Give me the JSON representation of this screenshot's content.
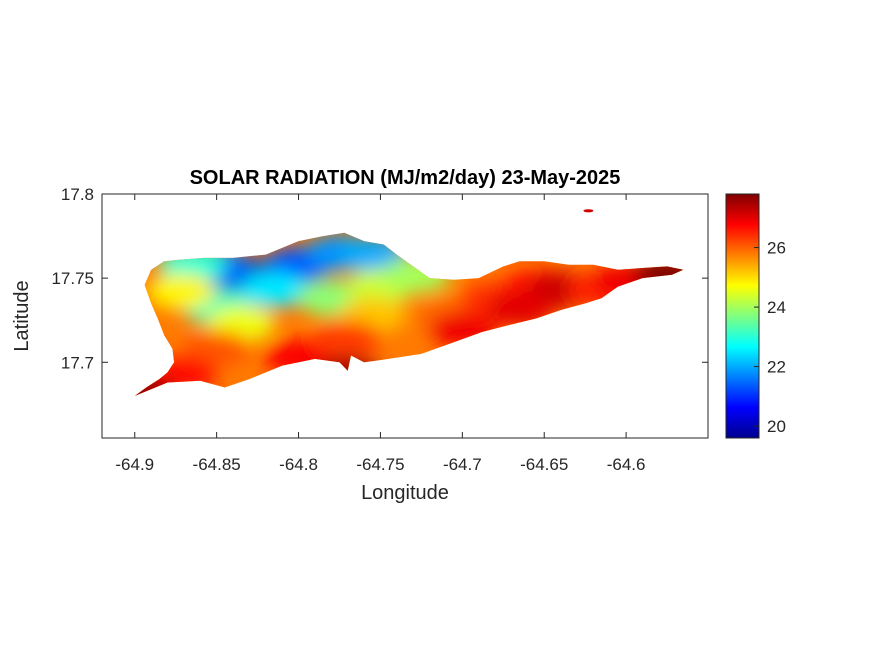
{
  "chart_data": {
    "type": "heatmap",
    "title": "SOLAR RADIATION (MJ/m2/day) 23-May-2025",
    "xlabel": "Longitude",
    "ylabel": "Latitude",
    "xlim": [
      -64.92,
      -64.55
    ],
    "ylim": [
      17.655,
      17.8
    ],
    "xticks": [
      -64.9,
      -64.85,
      -64.8,
      -64.75,
      -64.7,
      -64.65,
      -64.6
    ],
    "xtick_labels": [
      "-64.9",
      "-64.85",
      "-64.8",
      "-64.75",
      "-64.7",
      "-64.65",
      "-64.6"
    ],
    "yticks": [
      17.7,
      17.75,
      17.8
    ],
    "ytick_labels": [
      "17.7",
      "17.75",
      "17.8"
    ],
    "colormap": "jet",
    "colorbar": {
      "range": [
        19.6,
        27.8
      ],
      "ticks": [
        20,
        22,
        24,
        26
      ],
      "tick_labels": [
        "20",
        "22",
        "24",
        "26"
      ]
    },
    "grid": false,
    "regions": [
      {
        "lon": -64.835,
        "lat": 17.752,
        "value": 20.2
      },
      {
        "lon": -64.8,
        "lat": 17.758,
        "value": 21.3
      },
      {
        "lon": -64.85,
        "lat": 17.757,
        "value": 21.5
      },
      {
        "lon": -64.775,
        "lat": 17.765,
        "value": 21.8
      },
      {
        "lon": -64.755,
        "lat": 17.764,
        "value": 22.0
      },
      {
        "lon": -64.865,
        "lat": 17.758,
        "value": 23.0
      },
      {
        "lon": -64.815,
        "lat": 17.743,
        "value": 22.5
      },
      {
        "lon": -64.85,
        "lat": 17.733,
        "value": 23.2
      },
      {
        "lon": -64.78,
        "lat": 17.738,
        "value": 23.8
      },
      {
        "lon": -64.75,
        "lat": 17.745,
        "value": 24.3
      },
      {
        "lon": -64.835,
        "lat": 17.723,
        "value": 24.6
      },
      {
        "lon": -64.872,
        "lat": 17.742,
        "value": 24.8
      },
      {
        "lon": -64.728,
        "lat": 17.752,
        "value": 24.0
      },
      {
        "lon": -64.755,
        "lat": 17.728,
        "value": 25.2
      },
      {
        "lon": -64.71,
        "lat": 17.728,
        "value": 25.9
      },
      {
        "lon": -64.85,
        "lat": 17.708,
        "value": 26.1
      },
      {
        "lon": -64.8,
        "lat": 17.703,
        "value": 26.8
      },
      {
        "lon": -64.87,
        "lat": 17.693,
        "value": 26.7
      },
      {
        "lon": -64.77,
        "lat": 17.714,
        "value": 26.3
      },
      {
        "lon": -64.7,
        "lat": 17.72,
        "value": 26.9
      },
      {
        "lon": -64.68,
        "lat": 17.737,
        "value": 26.4
      },
      {
        "lon": -64.655,
        "lat": 17.745,
        "value": 26.6
      },
      {
        "lon": -64.64,
        "lat": 17.743,
        "value": 27.2
      },
      {
        "lon": -64.615,
        "lat": 17.743,
        "value": 26.5
      },
      {
        "lon": -64.6,
        "lat": 17.748,
        "value": 26.9
      },
      {
        "lon": -64.575,
        "lat": 17.752,
        "value": 27.8
      },
      {
        "lon": -64.895,
        "lat": 17.681,
        "value": 27.6
      },
      {
        "lon": -64.77,
        "lat": 17.693,
        "value": 27.5
      },
      {
        "lon": -64.623,
        "lat": 17.79,
        "value": 27.7
      },
      {
        "lon": -64.665,
        "lat": 17.732,
        "value": 27.0
      }
    ]
  }
}
